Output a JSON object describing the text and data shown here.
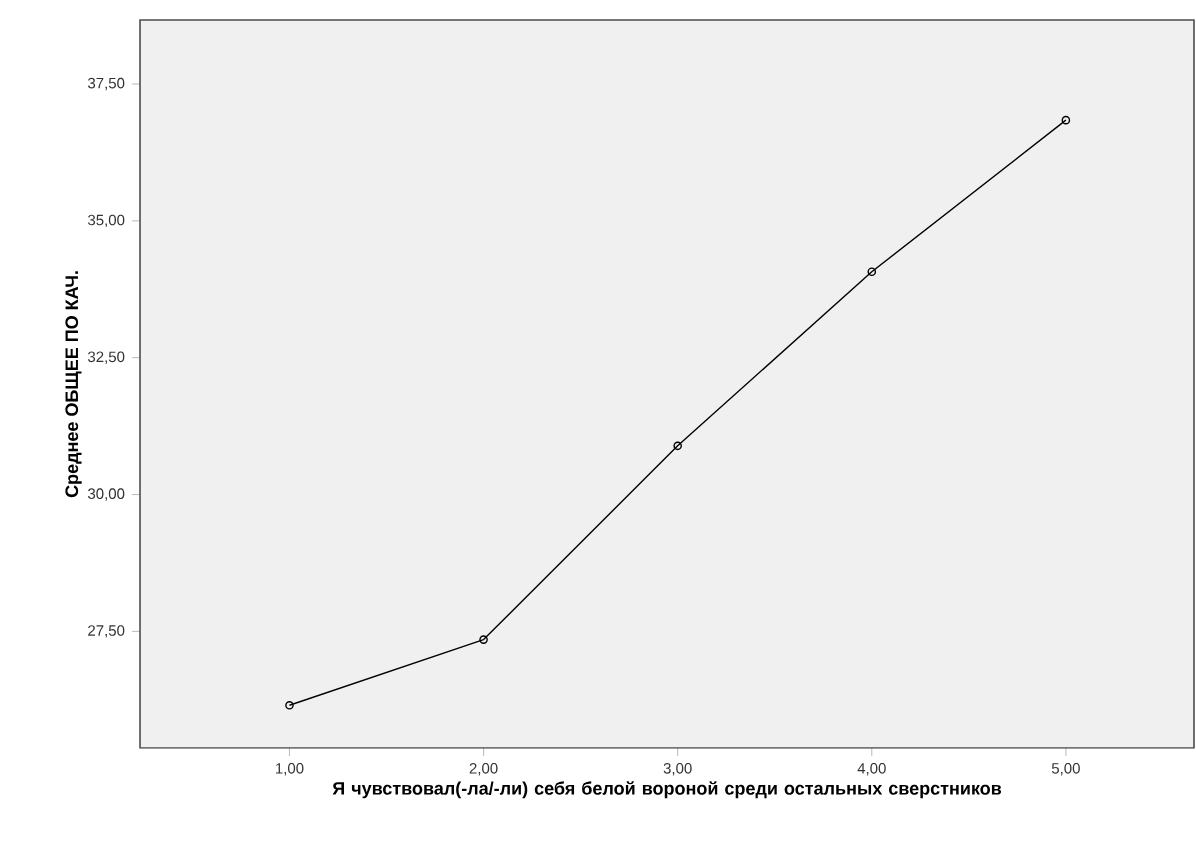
{
  "chart_data": {
    "type": "line",
    "xlabel": "Я чувствовал(-ла/-ли) себя белой вороной среди остальных сверстников",
    "ylabel": "Среднее ОБЩЕЕ ПО КАЧ.",
    "x": [
      1,
      2,
      3,
      4,
      5
    ],
    "values": [
      26.15,
      27.35,
      30.89,
      34.07,
      36.84
    ],
    "color": "#000000",
    "marker": "circle",
    "line_style": "solid",
    "xlim": [
      0.23,
      5.66
    ],
    "ylim": [
      25.37,
      38.67
    ],
    "xticks": [
      {
        "value": 1,
        "label": "1,00"
      },
      {
        "value": 2,
        "label": "2,00"
      },
      {
        "value": 3,
        "label": "3,00"
      },
      {
        "value": 4,
        "label": "4,00"
      },
      {
        "value": 5,
        "label": "5,00"
      }
    ],
    "yticks": [
      {
        "value": 27.5,
        "label": "27,50"
      },
      {
        "value": 30,
        "label": "30,00"
      },
      {
        "value": 32.5,
        "label": "32,50"
      },
      {
        "value": 35,
        "label": "35,00"
      },
      {
        "value": 37.5,
        "label": "37,50"
      }
    ]
  }
}
